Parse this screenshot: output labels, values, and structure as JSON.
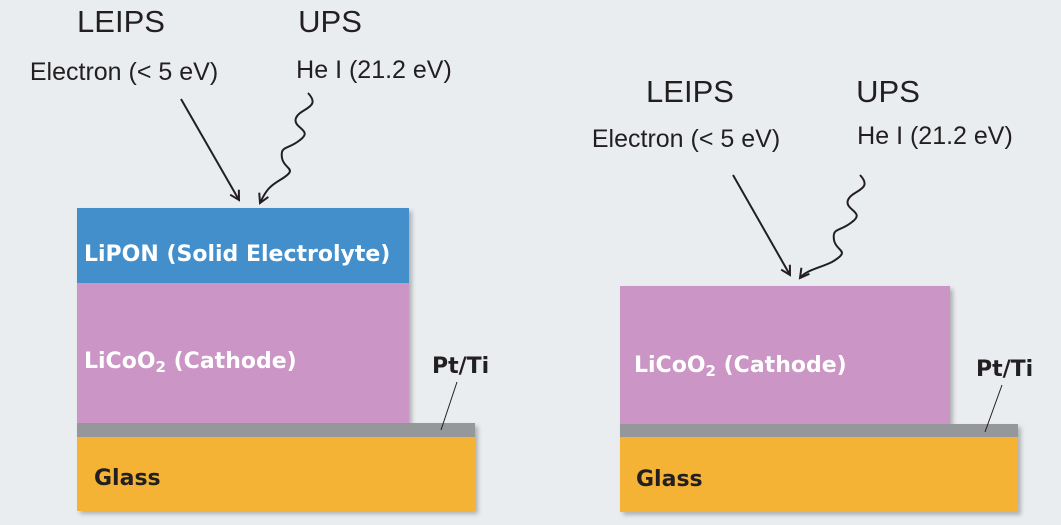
{
  "colors": {
    "background": "#eaedf0",
    "lipon": "#438fcb",
    "licoo2": "#cb95c5",
    "pt_ti": "#96979b",
    "glass": "#f4b335"
  },
  "left": {
    "leips": {
      "title": "LEIPS",
      "subtitle": "Electron (< 5 eV)"
    },
    "ups": {
      "title": "UPS",
      "subtitle": "He I (21.2 eV)"
    },
    "layers": {
      "lipon": "LiPON (Solid Electrolyte)",
      "licoo2_main": "LiCoO",
      "licoo2_sub": "2",
      "licoo2_rest": " (Cathode)",
      "pt_ti": "Pt/Ti",
      "glass": "Glass"
    }
  },
  "right": {
    "leips": {
      "title": "LEIPS",
      "subtitle": "Electron (< 5 eV)"
    },
    "ups": {
      "title": "UPS",
      "subtitle": "He I (21.2 eV)"
    },
    "layers": {
      "licoo2_main": "LiCoO",
      "licoo2_sub": "2",
      "licoo2_rest": " (Cathode)",
      "pt_ti": "Pt/Ti",
      "glass": "Glass"
    }
  }
}
